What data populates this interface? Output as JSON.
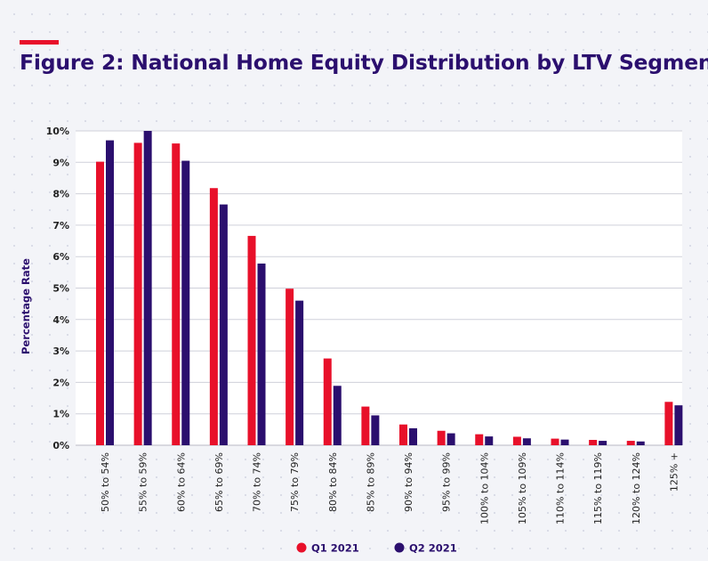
{
  "header": {
    "title": "Figure 2: National Home Equity Distribution by LTV Segment"
  },
  "colors": {
    "q1": "#e8102a",
    "q2": "#2b0f6e",
    "accent": "#e8102a",
    "title": "#2b0f6e"
  },
  "chart_data": {
    "type": "bar",
    "title": "Figure 2: National Home Equity Distribution by LTV Segment",
    "xlabel": "",
    "ylabel": "Percentage Rate",
    "ylim": [
      0,
      10
    ],
    "yticks": [
      "0%",
      "1%",
      "2%",
      "3%",
      "4%",
      "5%",
      "6%",
      "7%",
      "8%",
      "9%",
      "10%"
    ],
    "grid": true,
    "legend_position": "bottom-center",
    "categories": [
      "50% to 54%",
      "55% to 59%",
      "60% to 64%",
      "65% to 69%",
      "70% to 74%",
      "75% to 79%",
      "80% to 84%",
      "85% to 89%",
      "90% to 94%",
      "95% to 99%",
      "100% to 104%",
      "105% to 109%",
      "110% to 114%",
      "115% to 119%",
      "120% to 124%",
      "125% +"
    ],
    "series": [
      {
        "name": "Q1 2021",
        "values": [
          9.02,
          9.62,
          9.6,
          8.18,
          6.66,
          4.98,
          2.76,
          1.23,
          0.66,
          0.46,
          0.35,
          0.27,
          0.21,
          0.17,
          0.14,
          1.38
        ]
      },
      {
        "name": "Q2 2021",
        "values": [
          9.7,
          10.0,
          9.05,
          7.66,
          5.78,
          4.6,
          1.89,
          0.95,
          0.54,
          0.38,
          0.28,
          0.22,
          0.18,
          0.14,
          0.12,
          1.27
        ]
      }
    ]
  }
}
